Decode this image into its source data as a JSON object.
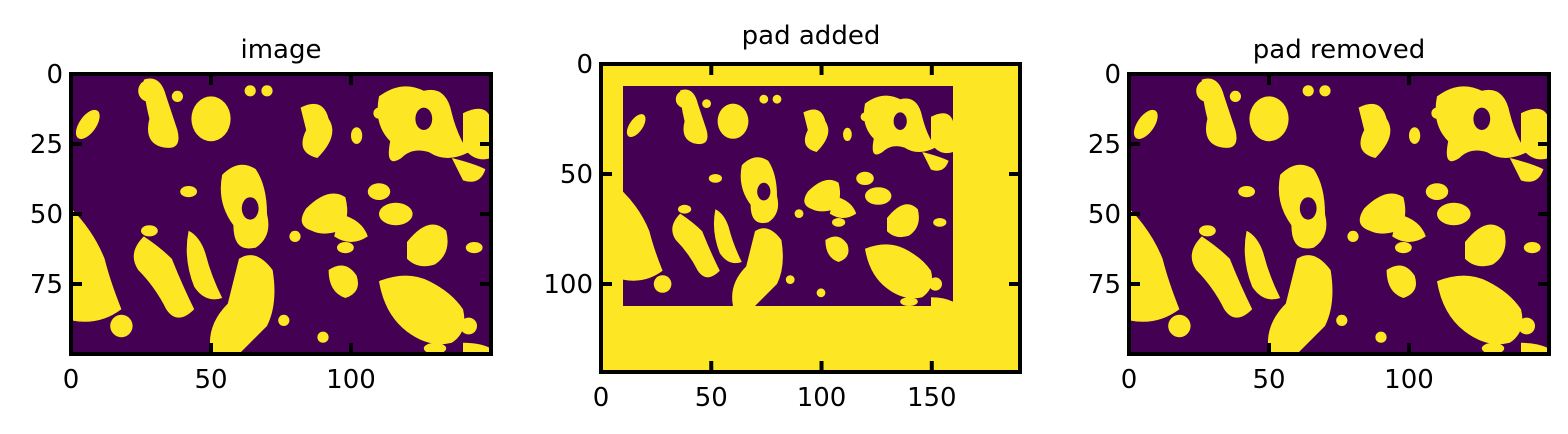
{
  "colors": {
    "background_low": "#440154",
    "foreground_high": "#fde725",
    "axes": "#000000"
  },
  "chart_data": [
    {
      "type": "heatmap",
      "title": "image",
      "xlabel": "",
      "ylabel": "",
      "xlim": [
        0,
        150
      ],
      "ylim": [
        100,
        0
      ],
      "xticks": [
        0,
        50,
        100
      ],
      "yticks": [
        0,
        25,
        50,
        75
      ],
      "colormap": "viridis",
      "grid": false
    },
    {
      "type": "heatmap",
      "title": "pad added",
      "xlabel": "",
      "ylabel": "",
      "xlim": [
        0,
        190
      ],
      "ylim": [
        140,
        0
      ],
      "xticks": [
        0,
        50,
        100,
        150
      ],
      "yticks": [
        0,
        50,
        100
      ],
      "colormap": "viridis",
      "inner_region": {
        "x": [
          10,
          160
        ],
        "y": [
          10,
          110
        ]
      },
      "grid": false
    },
    {
      "type": "heatmap",
      "title": "pad removed",
      "xlabel": "",
      "ylabel": "",
      "xlim": [
        0,
        150
      ],
      "ylim": [
        100,
        0
      ],
      "xticks": [
        0,
        50,
        100
      ],
      "yticks": [
        0,
        25,
        50,
        75
      ],
      "colormap": "viridis",
      "grid": false
    }
  ]
}
